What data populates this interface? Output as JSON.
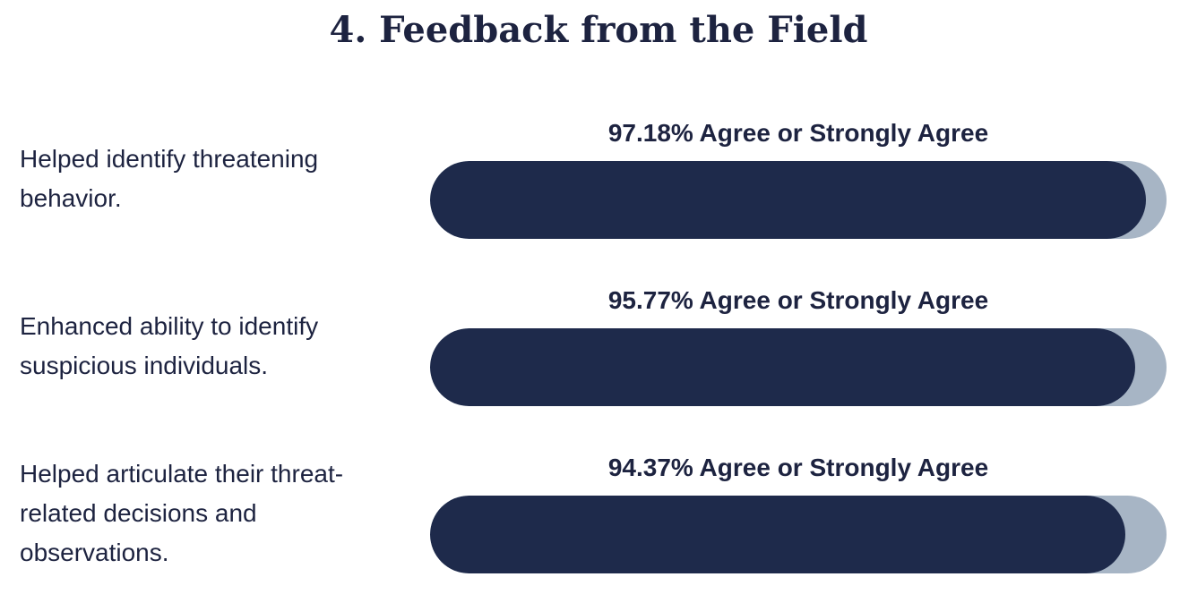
{
  "title": "4. Feedback from the Field",
  "chart_data": {
    "type": "bar",
    "orientation": "horizontal",
    "colors": {
      "fill": "#1e2a4b",
      "track": "#a7b5c5",
      "text": "#1d2340"
    },
    "xlim": [
      0,
      100
    ],
    "categories": [
      "Helped identify threatening behavior.",
      "Enhanced ability to identify suspicious individuals.",
      "Helped articulate their threat-related decisions and observations."
    ],
    "values": [
      97.18,
      95.77,
      94.37
    ],
    "data_labels": [
      "97.18% Agree or Strongly Agree",
      "95.77% Agree or Strongly Agree",
      "94.37% Agree or Strongly Agree"
    ]
  }
}
